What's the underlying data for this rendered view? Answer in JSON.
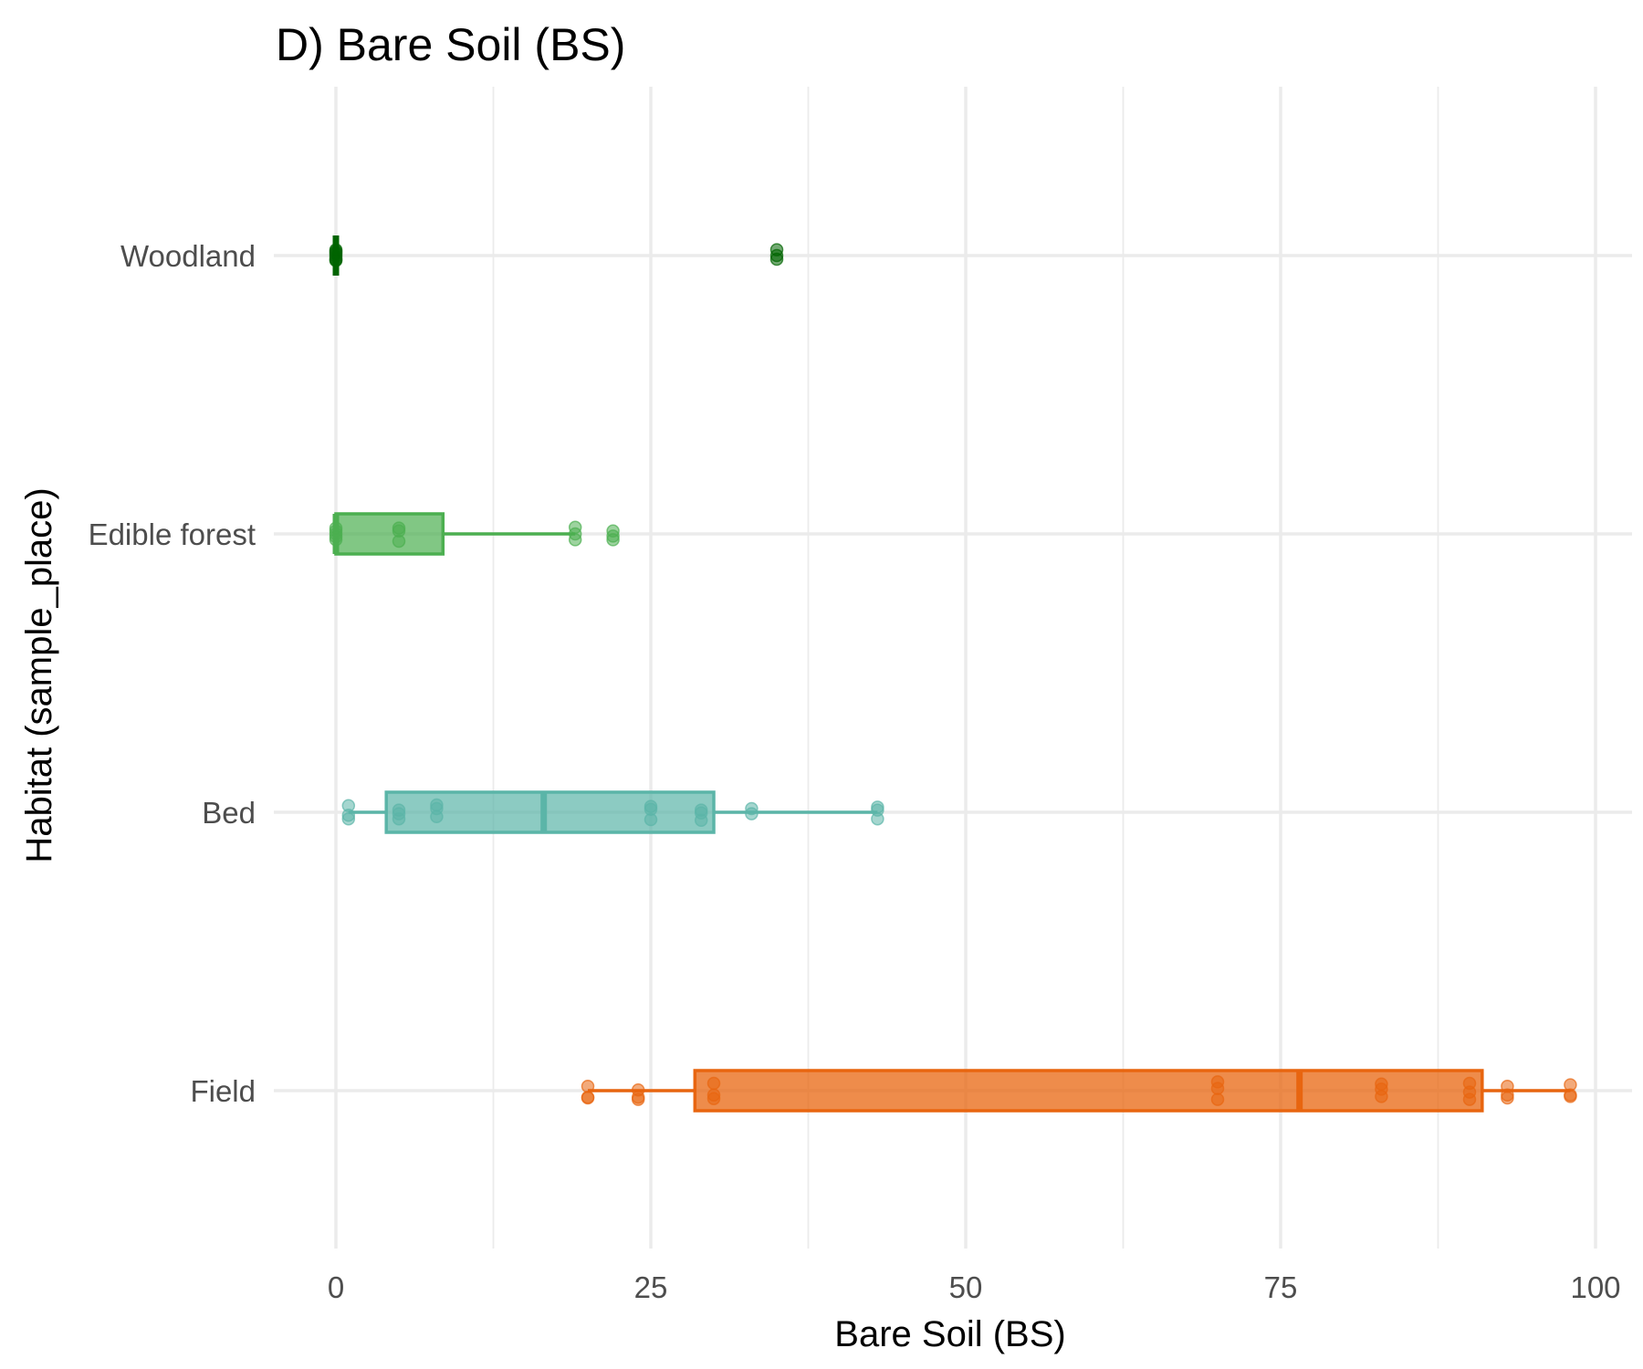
{
  "chart_data": {
    "type": "boxplot",
    "orientation": "horizontal",
    "title": "D) Bare Soil (BS)",
    "xlabel": "Bare Soil (BS)",
    "ylabel": "Habitat (sample_place)",
    "xlim": [
      -5,
      102
    ],
    "x_ticks": [
      0,
      25,
      50,
      75,
      100
    ],
    "x_tick_labels": [
      "0",
      "25",
      "50",
      "75",
      "100"
    ],
    "grid": true,
    "legend": "none",
    "categories": [
      "Woodland",
      "Edible forest",
      "Bed",
      "Field"
    ],
    "series": [
      {
        "category": "Woodland",
        "color": "#006400",
        "fill_opacity": 0.6,
        "box": {
          "whisker_low": 0,
          "q1": 0,
          "median": 0,
          "q3": 0,
          "whisker_high": 0
        },
        "points": [
          {
            "x": 0,
            "jy": -0.3
          },
          {
            "x": 0,
            "jy": 0.2
          },
          {
            "x": 0,
            "jy": -0.1
          },
          {
            "x": 0,
            "jy": 0.35
          },
          {
            "x": 0,
            "jy": -0.4
          },
          {
            "x": 0,
            "jy": 0.05
          },
          {
            "x": 0,
            "jy": -0.2
          },
          {
            "x": 0,
            "jy": 0.3
          },
          {
            "x": 35,
            "jy": -0.4
          },
          {
            "x": 35,
            "jy": 0.0
          },
          {
            "x": 35,
            "jy": 0.25
          }
        ]
      },
      {
        "category": "Edible forest",
        "color": "#4CAF50",
        "fill_opacity": 0.7,
        "box": {
          "whisker_low": 0,
          "q1": 0,
          "median": 0,
          "q3": 8.5,
          "whisker_high": 19
        },
        "points": [
          {
            "x": 0,
            "jy": -0.4
          },
          {
            "x": 0,
            "jy": -0.2
          },
          {
            "x": 0,
            "jy": 0.0
          },
          {
            "x": 0,
            "jy": 0.2
          },
          {
            "x": 0,
            "jy": 0.4
          },
          {
            "x": 5,
            "jy": -0.4
          },
          {
            "x": 5,
            "jy": -0.2
          },
          {
            "x": 5,
            "jy": 0.5
          },
          {
            "x": 19,
            "jy": -0.45
          },
          {
            "x": 19,
            "jy": 0.0
          },
          {
            "x": 19,
            "jy": 0.4
          },
          {
            "x": 22,
            "jy": -0.2
          },
          {
            "x": 22,
            "jy": 0.15
          },
          {
            "x": 22,
            "jy": 0.4
          }
        ]
      },
      {
        "category": "Bed",
        "color": "#5BB5A8",
        "fill_opacity": 0.7,
        "box": {
          "whisker_low": 1,
          "q1": 4,
          "median": 16.5,
          "q3": 30,
          "whisker_high": 43
        },
        "points": [
          {
            "x": 1,
            "jy": -0.45
          },
          {
            "x": 1,
            "jy": 0.2
          },
          {
            "x": 1,
            "jy": 0.45
          },
          {
            "x": 5,
            "jy": -0.15
          },
          {
            "x": 5,
            "jy": 0.1
          },
          {
            "x": 5,
            "jy": 0.45
          },
          {
            "x": 8,
            "jy": -0.5
          },
          {
            "x": 8,
            "jy": -0.25
          },
          {
            "x": 8,
            "jy": 0.3
          },
          {
            "x": 25,
            "jy": -0.4
          },
          {
            "x": 25,
            "jy": -0.2
          },
          {
            "x": 25,
            "jy": 0.5
          },
          {
            "x": 29,
            "jy": -0.15
          },
          {
            "x": 29,
            "jy": 0.05
          },
          {
            "x": 29,
            "jy": 0.55
          },
          {
            "x": 33,
            "jy": -0.25
          },
          {
            "x": 33,
            "jy": 0.1
          },
          {
            "x": 43,
            "jy": -0.35
          },
          {
            "x": 43,
            "jy": -0.15
          },
          {
            "x": 43,
            "jy": 0.45
          }
        ]
      },
      {
        "category": "Field",
        "color": "#E8650F",
        "fill_opacity": 0.75,
        "box": {
          "whisker_low": 20,
          "q1": 28.5,
          "median": 76.5,
          "q3": 91,
          "whisker_high": 98
        },
        "points": [
          {
            "x": 20,
            "jy": -0.3
          },
          {
            "x": 20,
            "jy": 0.45
          },
          {
            "x": 20,
            "jy": 0.5
          },
          {
            "x": 24,
            "jy": -0.05
          },
          {
            "x": 24,
            "jy": 0.45
          },
          {
            "x": 24,
            "jy": 0.6
          },
          {
            "x": 30,
            "jy": -0.5
          },
          {
            "x": 30,
            "jy": 0.3
          },
          {
            "x": 30,
            "jy": 0.55
          },
          {
            "x": 70,
            "jy": -0.6
          },
          {
            "x": 70,
            "jy": -0.15
          },
          {
            "x": 70,
            "jy": 0.6
          },
          {
            "x": 83,
            "jy": -0.45
          },
          {
            "x": 83,
            "jy": -0.1
          },
          {
            "x": 83,
            "jy": 0.4
          },
          {
            "x": 90,
            "jy": -0.5
          },
          {
            "x": 90,
            "jy": 0.1
          },
          {
            "x": 90,
            "jy": 0.6
          },
          {
            "x": 93,
            "jy": -0.3
          },
          {
            "x": 93,
            "jy": 0.3
          },
          {
            "x": 93,
            "jy": 0.5
          },
          {
            "x": 98,
            "jy": -0.4
          },
          {
            "x": 98,
            "jy": 0.3
          },
          {
            "x": 98,
            "jy": 0.4
          }
        ]
      }
    ]
  }
}
